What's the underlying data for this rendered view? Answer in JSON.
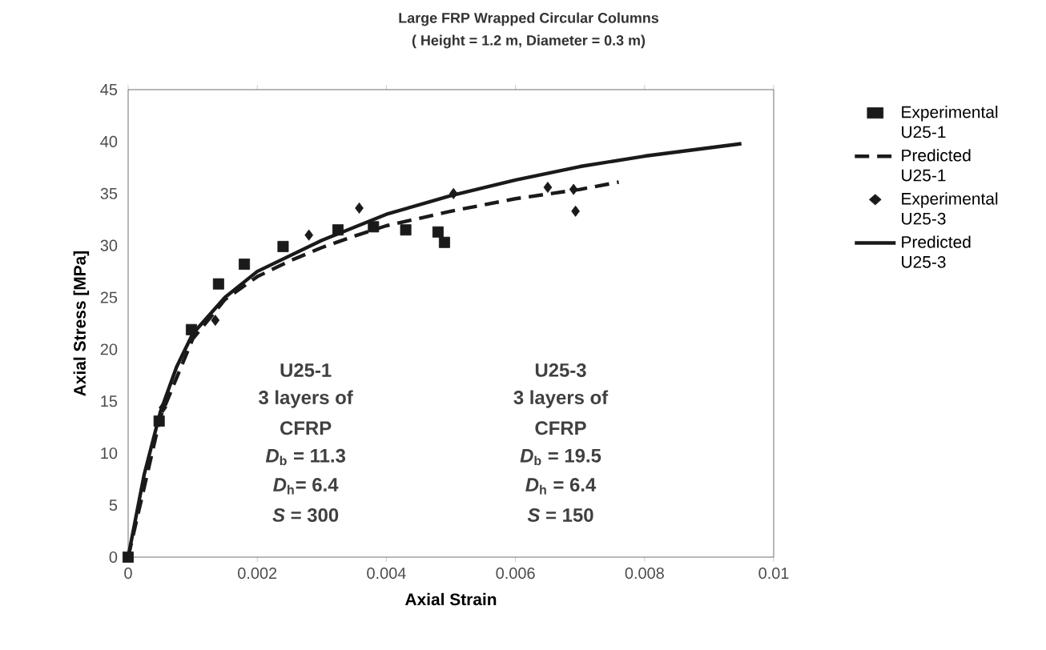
{
  "chart_data": {
    "type": "scatter",
    "title": "Large  FRP Wrapped Circular Columns",
    "subtitle": "( Height = 1.2 m, Diameter = 0.3 m)",
    "xlabel": "Axial Strain",
    "ylabel": "Axial Stress   [MPa]",
    "xlim": [
      0,
      0.01
    ],
    "ylim": [
      0,
      45
    ],
    "xticks": [
      0,
      0.002,
      0.004,
      0.006,
      0.008,
      0.01
    ],
    "yticks": [
      0,
      5,
      10,
      15,
      20,
      25,
      30,
      35,
      40,
      45
    ],
    "grid": false,
    "legend": "right",
    "series": [
      {
        "name": "Experimental U25-1",
        "marker": "square",
        "color": "#1a1a1a",
        "x": [
          0,
          0.00048,
          0.00098,
          0.0014,
          0.0018,
          0.0024,
          0.00325,
          0.0038,
          0.0043,
          0.0048,
          0.0049
        ],
        "values": [
          0,
          13.1,
          21.9,
          26.3,
          28.2,
          29.9,
          31.5,
          31.8,
          31.5,
          31.3,
          30.3
        ]
      },
      {
        "name": "Predicted U25-1",
        "type": "line",
        "line_style": "dashed",
        "color": "#1a1a1a",
        "x": [
          0,
          0.0005,
          0.001,
          0.0015,
          0.002,
          0.0025,
          0.003,
          0.0035,
          0.004,
          0.005,
          0.006,
          0.007,
          0.0076
        ],
        "values": [
          0,
          13.5,
          21,
          24.8,
          27,
          28.5,
          29.8,
          30.9,
          31.9,
          33.3,
          34.5,
          35.4,
          36.1
        ]
      },
      {
        "name": "Experimental U25-3",
        "marker": "diamond",
        "color": "#1a1a1a",
        "x": [
          0.00054,
          0.00135,
          0.0028,
          0.00358,
          0.00504,
          0.0065,
          0.0069,
          0.00693
        ],
        "values": [
          14.4,
          22.8,
          31.0,
          33.6,
          35.0,
          35.6,
          35.4,
          33.3
        ]
      },
      {
        "name": "Predicted U25-3",
        "type": "line",
        "line_style": "solid",
        "color": "#1a1a1a",
        "x": [
          0,
          0.00025,
          0.0005,
          0.00075,
          0.001,
          0.0015,
          0.002,
          0.003,
          0.004,
          0.005,
          0.006,
          0.007,
          0.008,
          0.0095
        ],
        "values": [
          0,
          8,
          14,
          18.3,
          21.5,
          25,
          27.5,
          30.5,
          33,
          34.8,
          36.3,
          37.6,
          38.6,
          39.8
        ]
      }
    ],
    "annotations": [
      "U25-1",
      "3 layers of",
      "CFRP",
      "*D*$_{b}$ = 11.3",
      "*D*$_{h}$= 6.4",
      "*S* = 300",
      "U25-3",
      "3 layers of",
      "CFRP",
      "*D*$_{b}$ = 19.5",
      "*D*$_{h}$ = 6.4",
      "*S* = 150"
    ]
  }
}
